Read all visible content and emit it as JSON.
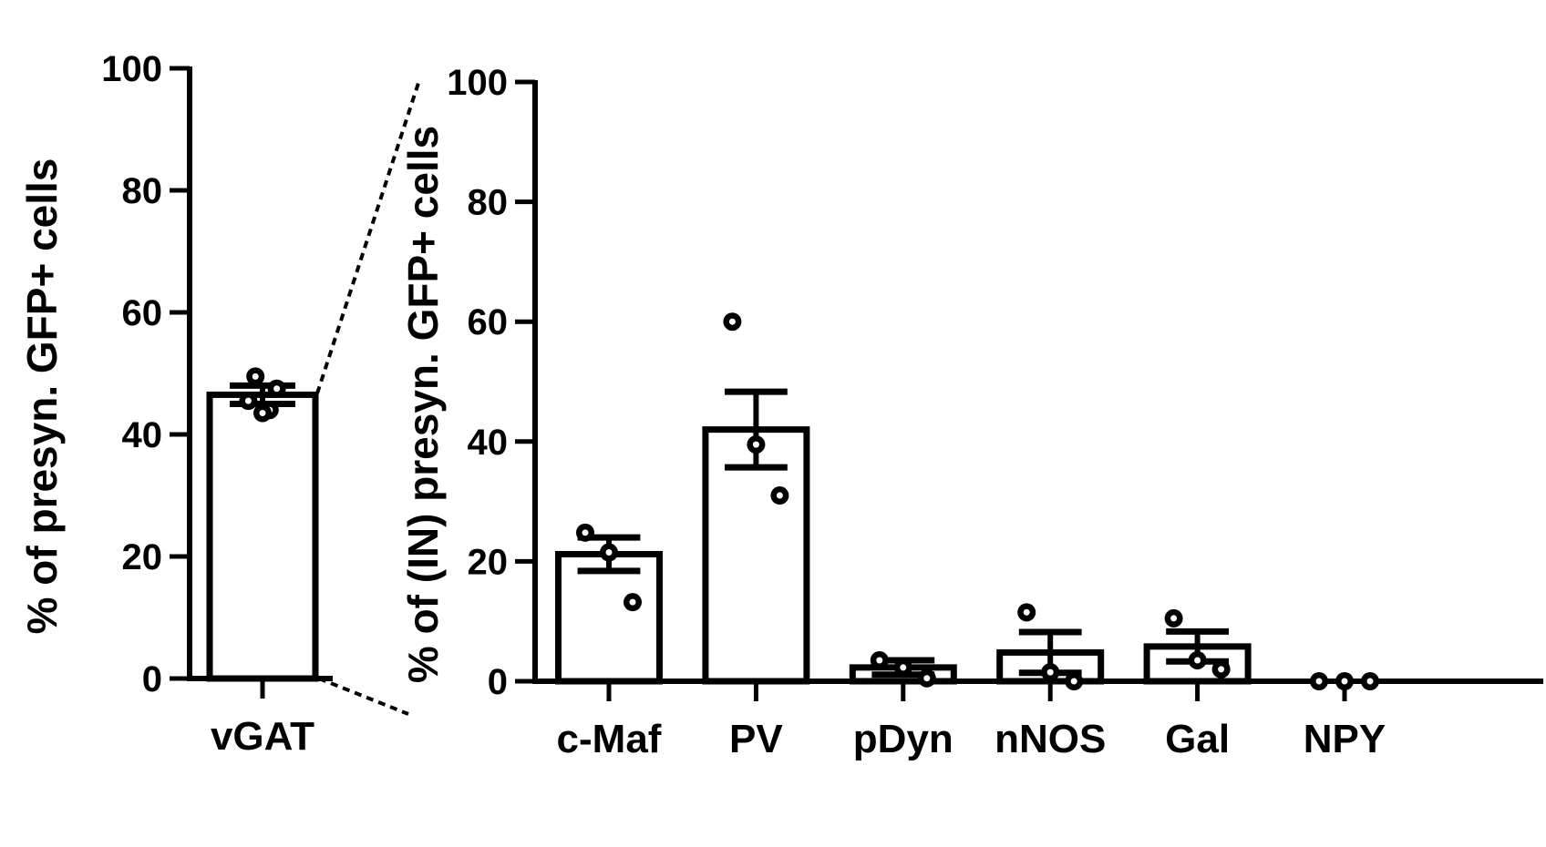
{
  "chart_data": [
    {
      "type": "bar",
      "categories": [
        "vGAT"
      ],
      "values": [
        46.5
      ],
      "error": [
        1.5
      ],
      "points": [
        [
          49.5,
          47.5,
          45.5,
          44.0,
          43.5
        ]
      ],
      "ylabel": "% of presyn. GFP+ cells",
      "ylim": [
        0,
        100
      ],
      "yticks": [
        "0",
        "20",
        "40",
        "60",
        "80",
        "100"
      ],
      "grid": false
    },
    {
      "type": "bar",
      "categories": [
        "c-Maf",
        "PV",
        "pDyn",
        "nNOS",
        "Gal",
        "NPY"
      ],
      "values": [
        21.2,
        42.0,
        2.3,
        4.8,
        5.8,
        0.0
      ],
      "error": [
        2.8,
        6.3,
        1.2,
        3.4,
        2.5,
        0.0
      ],
      "points": [
        [
          24.8,
          21.5,
          13.2
        ],
        [
          60.0,
          39.5,
          31.0
        ],
        [
          3.5,
          2.3,
          0.5
        ],
        [
          11.5,
          1.5,
          0.0
        ],
        [
          10.5,
          3.5,
          2.0
        ],
        [
          0.0,
          0.0,
          0.0
        ]
      ],
      "ylabel": "% of (IN) presyn. GFP+ cells",
      "ylim": [
        0,
        100
      ],
      "yticks": [
        "0",
        "20",
        "40",
        "60",
        "80",
        "100"
      ],
      "grid": false
    }
  ]
}
